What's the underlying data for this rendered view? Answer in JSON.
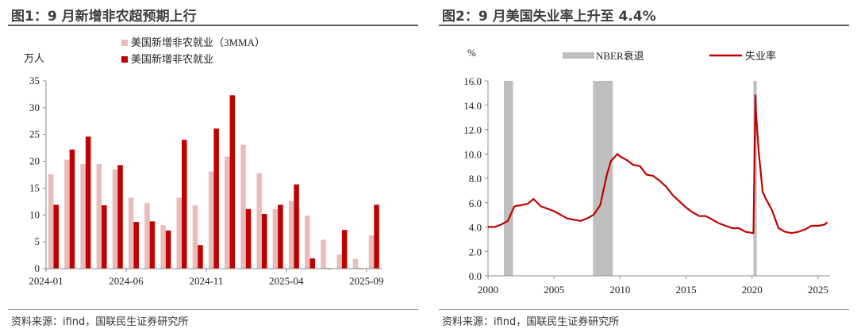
{
  "chart_data": [
    {
      "type": "bar",
      "title": "图1：9 月新增非农超预期上行",
      "ylabel": "万人",
      "ylim": [
        0,
        35
      ],
      "yticks": [
        0,
        5,
        10,
        15,
        20,
        25,
        30,
        35
      ],
      "categories": [
        "2024-01",
        "2024-02",
        "2024-03",
        "2024-04",
        "2024-05",
        "2024-06",
        "2024-07",
        "2024-08",
        "2024-09",
        "2024-10",
        "2024-11",
        "2024-12",
        "2025-01",
        "2025-02",
        "2025-03",
        "2025-04",
        "2025-05",
        "2025-06",
        "2025-07",
        "2025-08",
        "2025-09"
      ],
      "xtick_labels": [
        "2024-01",
        "2024-06",
        "2024-11",
        "2025-04",
        "2025-09"
      ],
      "legend_position": "top",
      "series": [
        {
          "name": "美国新增非农就业（3MMA）",
          "color": "#e8bcbc",
          "values": [
            17.6,
            20.3,
            19.5,
            19.5,
            18.5,
            13.2,
            12.2,
            8.1,
            13.2,
            11.8,
            18.1,
            20.9,
            23.1,
            17.8,
            11.1,
            12.6,
            9.9,
            5.4,
            2.6,
            1.8,
            6.2
          ]
        },
        {
          "name": "美国新增非农就业",
          "color": "#c00000",
          "values": [
            11.9,
            22.2,
            24.6,
            11.8,
            19.3,
            8.7,
            8.8,
            7.1,
            24.0,
            4.4,
            26.1,
            32.3,
            11.1,
            10.2,
            11.9,
            15.7,
            1.9,
            -0.1,
            7.2,
            -0.1,
            11.9
          ]
        }
      ],
      "source": "资料来源：ifind，国联民生证券研究所"
    },
    {
      "type": "line",
      "title": "图2：9 月美国失业率上升至 4.4%",
      "ylabel": "%",
      "ylim": [
        0,
        16
      ],
      "yticks": [
        "0.0",
        "2.0",
        "4.0",
        "6.0",
        "8.0",
        "10.0",
        "12.0",
        "14.0",
        "16.0"
      ],
      "xlim": [
        2000,
        2025.9
      ],
      "xticks": [
        "2000",
        "2005",
        "2010",
        "2015",
        "2020",
        "2025"
      ],
      "legend_position": "top",
      "recession_label": "NBER衰退",
      "recession_color": "#bfbfbf",
      "recessions": [
        [
          2001.2,
          2001.9
        ],
        [
          2007.95,
          2009.45
        ],
        [
          2020.1,
          2020.35
        ]
      ],
      "series": [
        {
          "name": "失业率",
          "color": "#c00000",
          "x": [
            2000,
            2000.5,
            2001,
            2001.5,
            2002,
            2002.5,
            2003,
            2003.45,
            2004,
            2004.5,
            2005,
            2005.5,
            2006,
            2006.5,
            2007,
            2007.5,
            2008,
            2008.5,
            2009,
            2009.3,
            2009.8,
            2010,
            2010.5,
            2011,
            2011.5,
            2012,
            2012.5,
            2013,
            2013.5,
            2014,
            2014.5,
            2015,
            2015.5,
            2016,
            2016.5,
            2017,
            2017.5,
            2018,
            2018.5,
            2019,
            2019.5,
            2020.1,
            2020.25,
            2020.3,
            2020.5,
            2020.8,
            2021,
            2021.5,
            2022,
            2022.5,
            2023,
            2023.5,
            2024,
            2024.5,
            2025,
            2025.5,
            2025.7
          ],
          "y": [
            4.0,
            4.0,
            4.2,
            4.5,
            5.7,
            5.8,
            5.9,
            6.3,
            5.7,
            5.5,
            5.3,
            5.0,
            4.7,
            4.6,
            4.5,
            4.7,
            5.0,
            5.8,
            8.3,
            9.4,
            10.0,
            9.8,
            9.5,
            9.1,
            9.0,
            8.3,
            8.2,
            7.8,
            7.3,
            6.6,
            6.1,
            5.6,
            5.2,
            4.9,
            4.9,
            4.6,
            4.3,
            4.1,
            3.9,
            3.9,
            3.6,
            3.5,
            14.8,
            13.3,
            10.2,
            6.9,
            6.4,
            5.4,
            3.9,
            3.6,
            3.5,
            3.6,
            3.8,
            4.1,
            4.1,
            4.2,
            4.4
          ]
        }
      ],
      "source": "资料来源：ifind，国联民生证券研究所"
    }
  ]
}
